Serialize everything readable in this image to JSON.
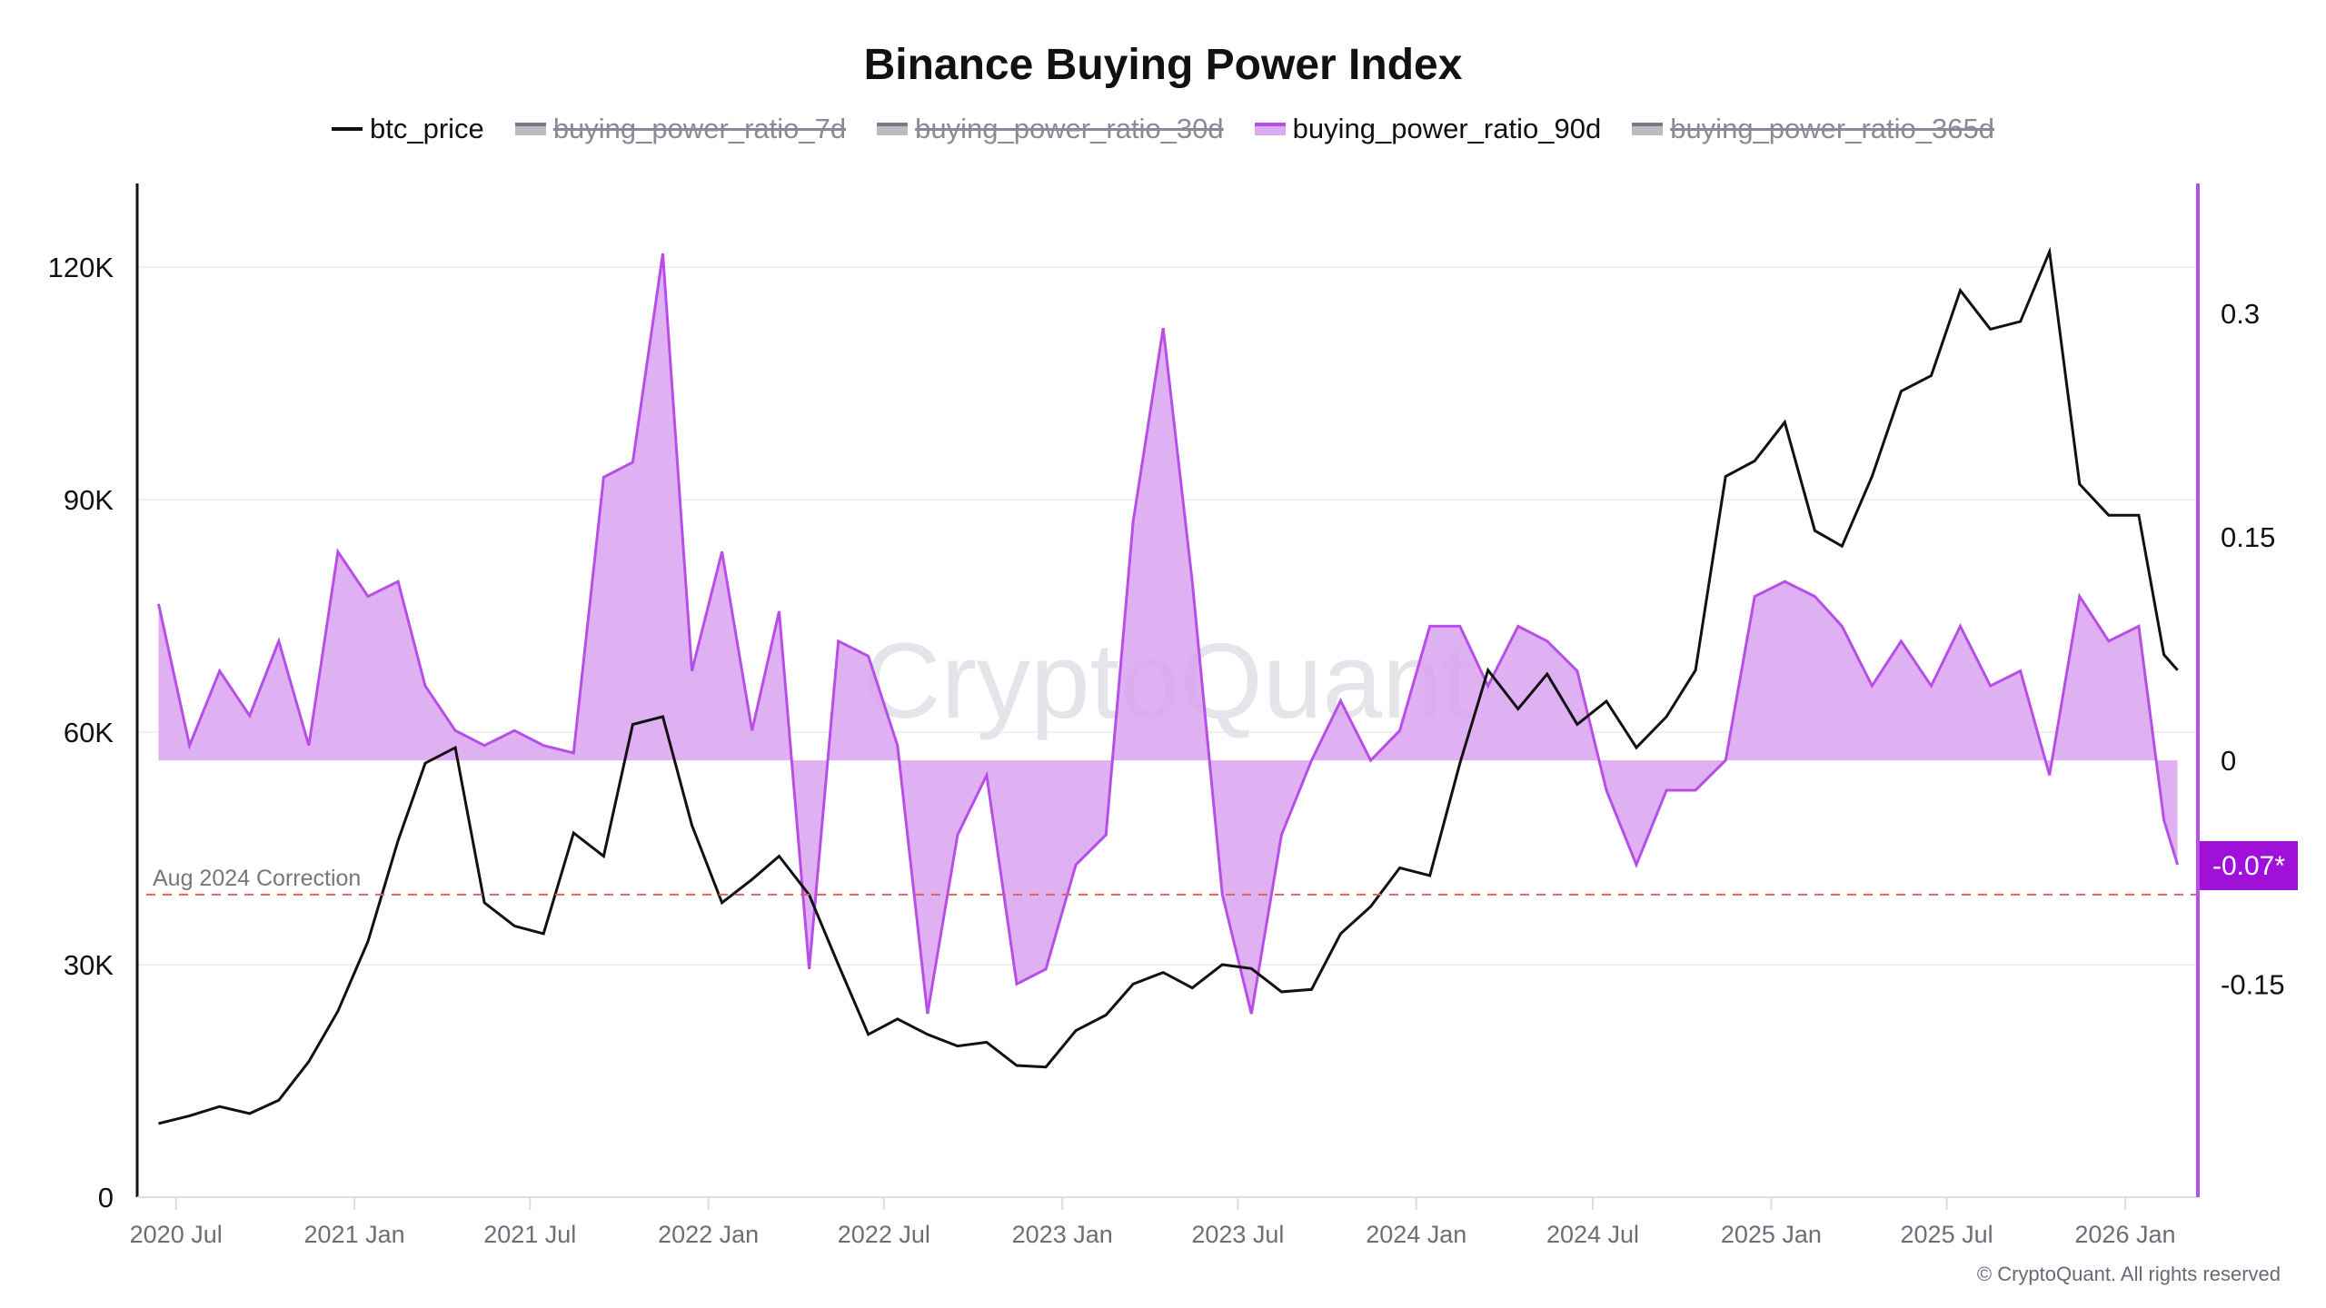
{
  "chart_data": {
    "type": "line",
    "title": "Binance Buying Power Index",
    "legend": [
      {
        "name": "btc_price",
        "color": "#111111",
        "enabled": true,
        "style": "line"
      },
      {
        "name": "buying_power_ratio_7d",
        "color": "#8a8a96",
        "enabled": false,
        "style": "area"
      },
      {
        "name": "buying_power_ratio_30d",
        "color": "#8a8a96",
        "enabled": false,
        "style": "area"
      },
      {
        "name": "buying_power_ratio_90d",
        "color": "#b84ee8",
        "enabled": true,
        "style": "area"
      },
      {
        "name": "buying_power_ratio_365d",
        "color": "#8a8a96",
        "enabled": false,
        "style": "area"
      }
    ],
    "legend_placement": "top-center",
    "x_range": [
      "2020-05-22",
      "2026-03-17"
    ],
    "x_ticks": [
      "2020 Jul",
      "2021 Jan",
      "2021 Jul",
      "2022 Jan",
      "2022 Jul",
      "2023 Jan",
      "2023 Jul",
      "2024 Jan",
      "2024 Jul",
      "2025 Jan",
      "2025 Jul",
      "2026 Jan"
    ],
    "x_tick_dates": [
      "2020-07-01",
      "2021-01-01",
      "2021-07-01",
      "2022-01-01",
      "2022-07-01",
      "2023-01-01",
      "2023-07-01",
      "2024-01-01",
      "2024-07-01",
      "2025-01-01",
      "2025-07-01",
      "2026-01-01"
    ],
    "y_left": {
      "range": [
        0,
        130800
      ],
      "ticks": [
        0,
        30000,
        60000,
        90000,
        120000
      ],
      "tick_labels": [
        "0",
        "30K",
        "60K",
        "90K",
        "120K"
      ]
    },
    "y_right": {
      "range": [
        -0.293,
        0.387
      ],
      "ticks": [
        -0.15,
        0,
        0.15,
        0.3
      ],
      "tick_labels": [
        "-0.15",
        "0",
        "0.15",
        "0.3"
      ]
    },
    "grid": true,
    "dates": [
      "2020-06-13",
      "2020-07-15",
      "2020-08-15",
      "2020-09-15",
      "2020-10-15",
      "2020-11-15",
      "2020-12-15",
      "2021-01-15",
      "2021-02-15",
      "2021-03-15",
      "2021-04-15",
      "2021-05-15",
      "2021-06-15",
      "2021-07-15",
      "2021-08-15",
      "2021-09-15",
      "2021-10-15",
      "2021-11-15",
      "2021-12-15",
      "2022-01-15",
      "2022-02-15",
      "2022-03-15",
      "2022-04-15",
      "2022-05-15",
      "2022-06-15",
      "2022-07-15",
      "2022-08-15",
      "2022-09-15",
      "2022-10-15",
      "2022-11-15",
      "2022-12-15",
      "2023-01-15",
      "2023-02-15",
      "2023-03-15",
      "2023-04-15",
      "2023-05-15",
      "2023-06-15",
      "2023-07-15",
      "2023-08-15",
      "2023-09-15",
      "2023-10-15",
      "2023-11-15",
      "2023-12-15",
      "2024-01-15",
      "2024-02-15",
      "2024-03-15",
      "2024-04-15",
      "2024-05-15",
      "2024-06-15",
      "2024-07-15",
      "2024-08-15",
      "2024-09-15",
      "2024-10-15",
      "2024-11-15",
      "2024-12-15",
      "2025-01-15",
      "2025-02-15",
      "2025-03-15",
      "2025-04-15",
      "2025-05-15",
      "2025-06-15",
      "2025-07-15",
      "2025-08-15",
      "2025-09-15",
      "2025-10-15",
      "2025-11-15",
      "2025-12-15",
      "2026-01-15",
      "2026-02-10",
      "2026-02-24"
    ],
    "series": [
      {
        "name": "btc_price",
        "axis": "left",
        "values": [
          9500,
          10500,
          11700,
          10800,
          12500,
          17500,
          24000,
          33000,
          46000,
          56000,
          58000,
          38000,
          35000,
          34000,
          47000,
          44000,
          61000,
          62000,
          48000,
          38000,
          41000,
          44000,
          39000,
          30000,
          21000,
          23000,
          21000,
          19500,
          20000,
          17000,
          16800,
          21500,
          23500,
          27500,
          29000,
          27000,
          30000,
          29500,
          26500,
          26800,
          34000,
          37500,
          42500,
          41500,
          56000,
          68000,
          63000,
          67500,
          61000,
          64000,
          58000,
          62000,
          68000,
          93000,
          95000,
          100000,
          86000,
          84000,
          93000,
          104000,
          106000,
          117000,
          112000,
          113000,
          122000,
          92000,
          88000,
          88000,
          70000,
          68000
        ]
      },
      {
        "name": "buying_power_ratio_90d",
        "axis": "right",
        "values": [
          0.105,
          0.01,
          0.06,
          0.03,
          0.08,
          0.01,
          0.14,
          0.11,
          0.12,
          0.05,
          0.02,
          0.01,
          0.02,
          0.01,
          0.005,
          0.19,
          0.2,
          0.34,
          0.06,
          0.14,
          0.02,
          0.1,
          -0.14,
          0.08,
          0.07,
          0.01,
          -0.17,
          -0.05,
          -0.01,
          -0.15,
          -0.14,
          -0.07,
          -0.05,
          0.16,
          0.29,
          0.12,
          -0.09,
          -0.17,
          -0.05,
          0.0,
          0.04,
          0.0,
          0.02,
          0.09,
          0.09,
          0.05,
          0.09,
          0.08,
          0.06,
          -0.02,
          -0.07,
          -0.02,
          -0.02,
          0.0,
          0.11,
          0.12,
          0.11,
          0.09,
          0.05,
          0.08,
          0.05,
          0.09,
          0.05,
          0.06,
          -0.01,
          0.11,
          0.08,
          0.09,
          -0.04,
          -0.07
        ]
      }
    ],
    "annotations": [
      {
        "type": "hline",
        "axis": "right",
        "value": -0.09,
        "label": "Aug 2024 Correction",
        "color": "#e06060",
        "style": "dashed"
      }
    ],
    "current_value_badge": {
      "label": "-0.07*",
      "value": -0.07,
      "color": "#a010d8"
    },
    "watermark": "CryptoQuant",
    "copyright": "© CryptoQuant. All rights reserved"
  }
}
